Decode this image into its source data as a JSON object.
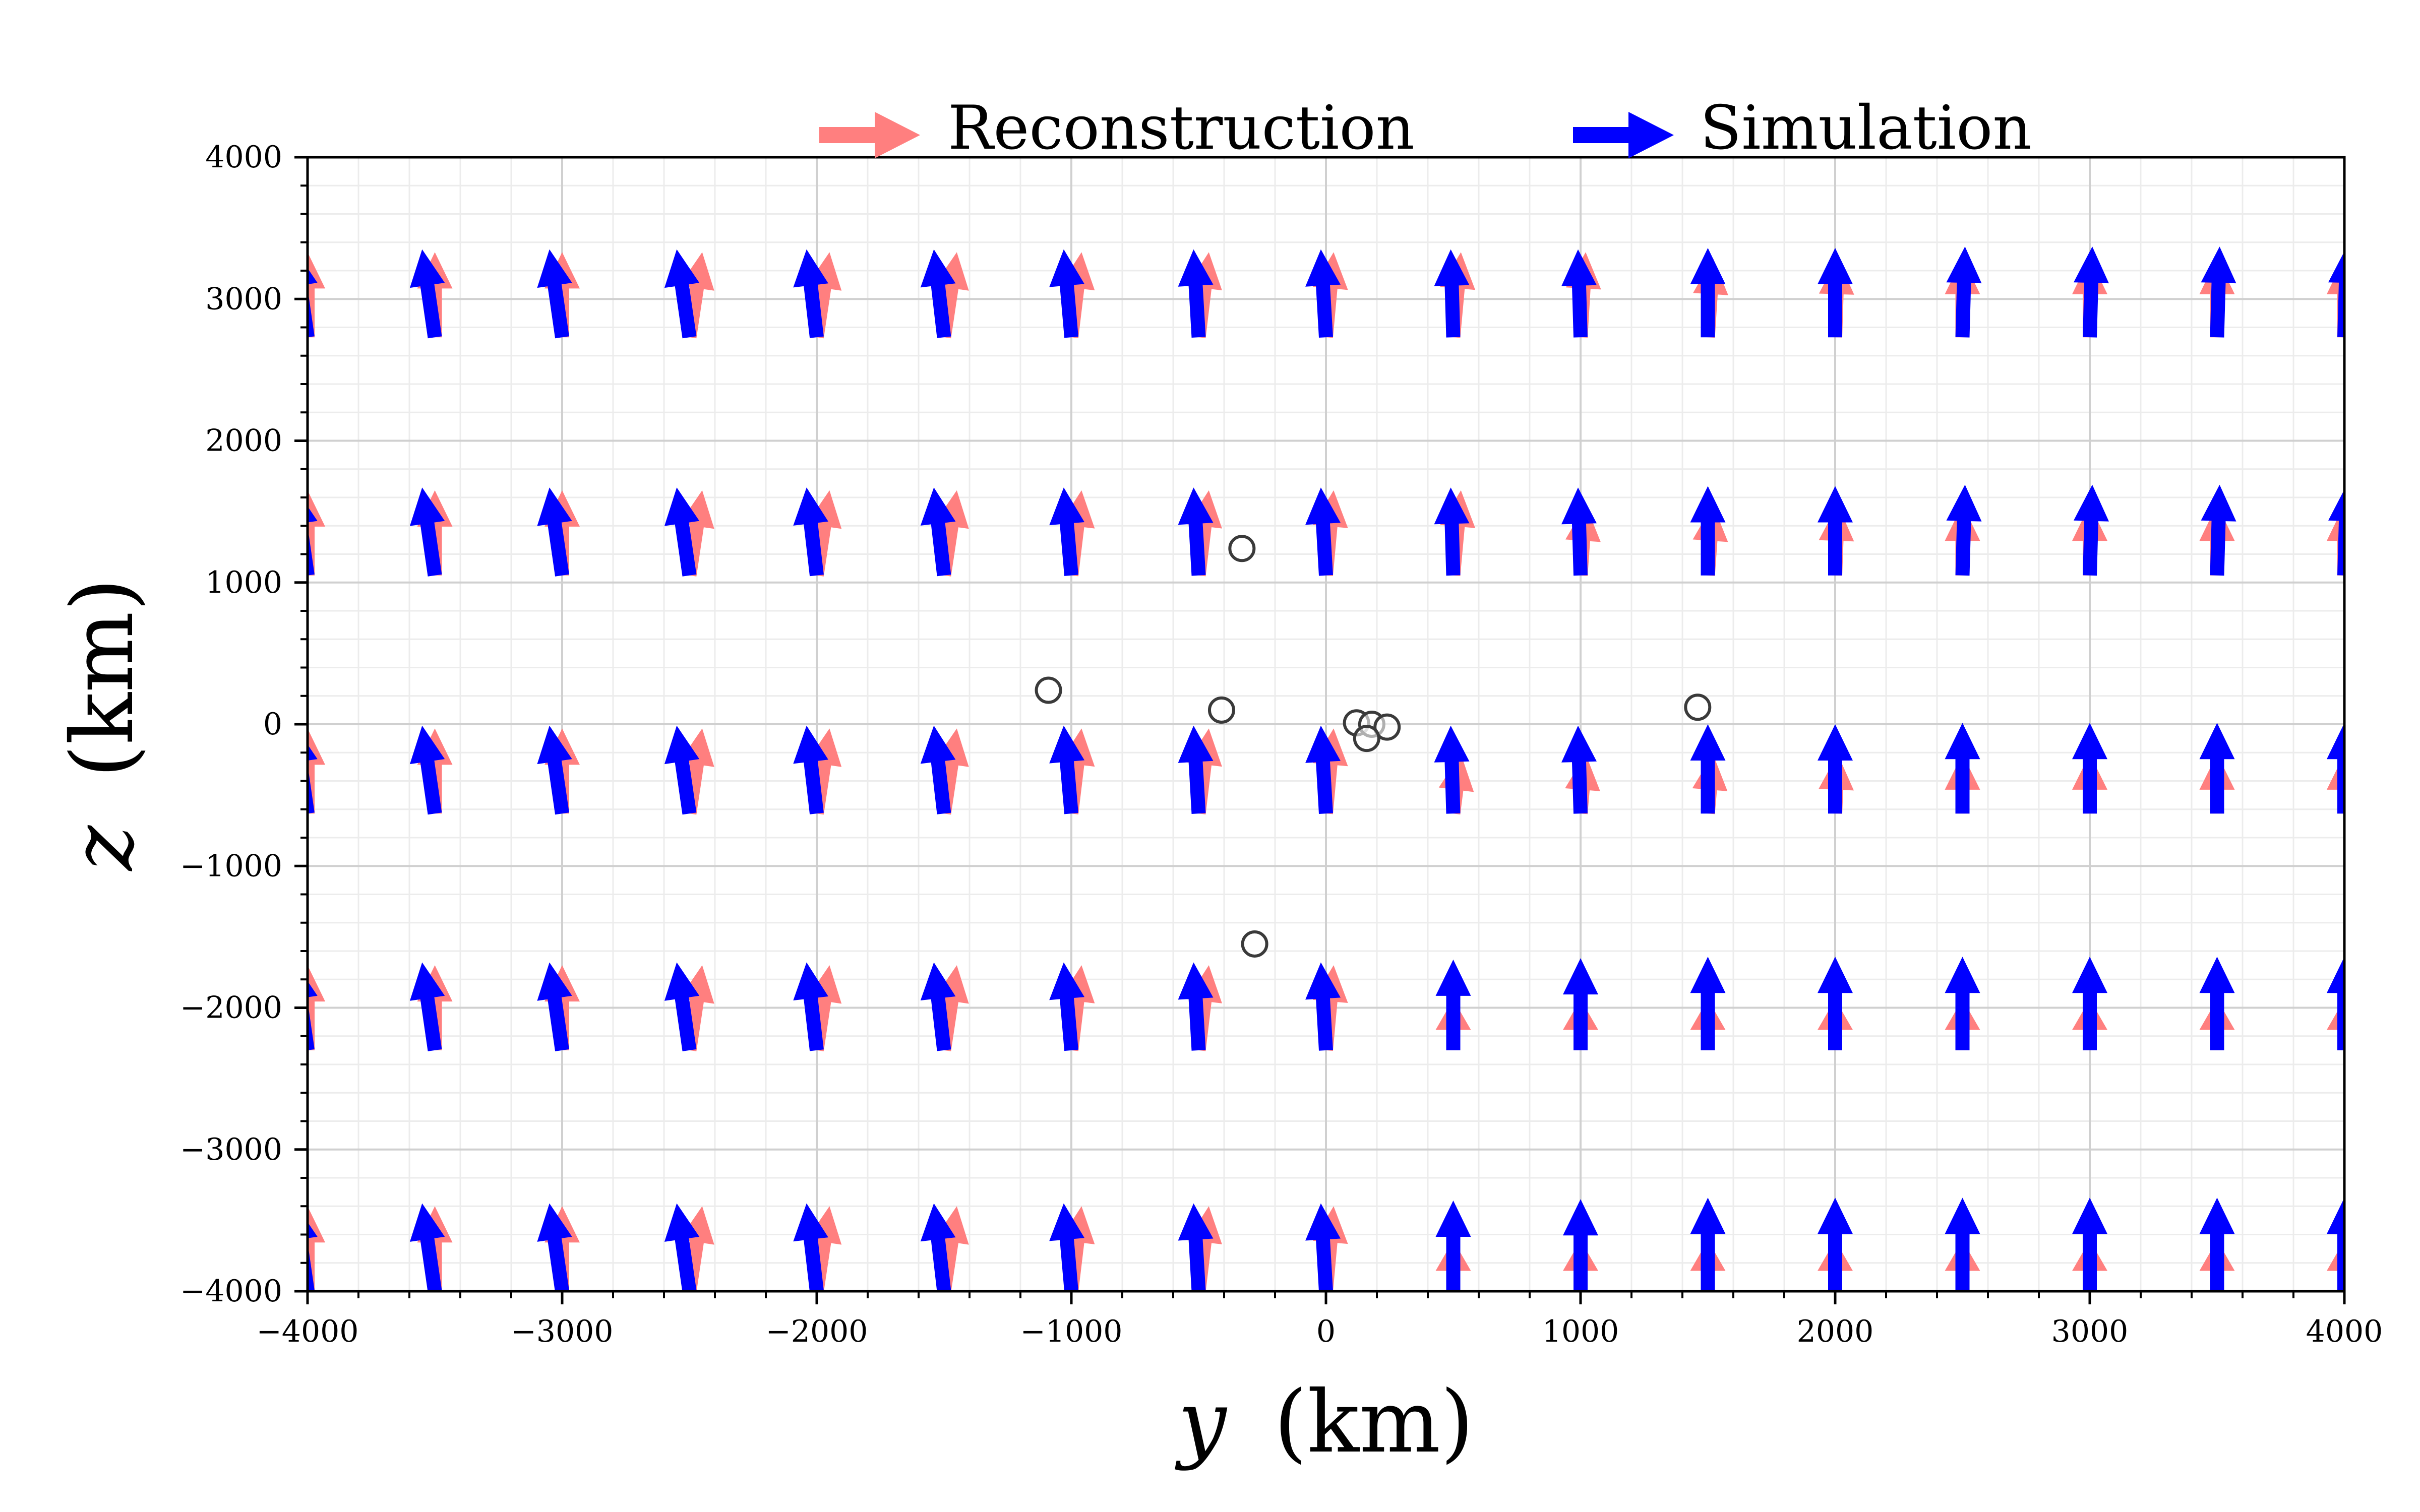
{
  "chart_data": {
    "type": "quiver",
    "xlabel_var": "y",
    "xlabel_unit": "(km)",
    "ylabel_var": "z",
    "ylabel_unit": "(km)",
    "xlim": [
      -4000,
      4000
    ],
    "ylim": [
      -4000,
      4000
    ],
    "xticks": [
      -4000,
      -3000,
      -2000,
      -1000,
      0,
      1000,
      2000,
      3000,
      4000
    ],
    "yticks": [
      -4000,
      -3000,
      -2000,
      -1000,
      0,
      1000,
      2000,
      3000,
      4000
    ],
    "xtick_labels": [
      "−4000",
      "−3000",
      "−2000",
      "−1000",
      "0",
      "1000",
      "2000",
      "3000",
      "4000"
    ],
    "ytick_labels": [
      "−4000",
      "−3000",
      "−2000",
      "−1000",
      "0",
      "1000",
      "2000",
      "3000",
      "4000"
    ],
    "grid": true,
    "minor_grid": true,
    "legend_position": "top-center",
    "legend": [
      {
        "name": "Reconstruction",
        "color": "#ff7f7f"
      },
      {
        "name": "Simulation",
        "color": "#0000ff"
      }
    ],
    "arrow_grid": {
      "x": [
        -4000,
        -3500,
        -3000,
        -2500,
        -2000,
        -1500,
        -1000,
        -500,
        0,
        500,
        1000,
        1500,
        2000,
        2500,
        3000,
        3500,
        4000
      ],
      "z_tail": [
        -4000,
        -2300,
        -630,
        1050,
        2730
      ]
    },
    "simulation_rows": [
      {
        "z_tail": 2730,
        "u": [
          -0.05,
          -0.05,
          -0.05,
          -0.05,
          -0.04,
          -0.04,
          -0.03,
          -0.02,
          -0.02,
          -0.01,
          -0.01,
          0.0,
          0.0,
          0.01,
          0.01,
          0.01,
          0.01
        ],
        "v": [
          0.62,
          0.62,
          0.62,
          0.62,
          0.62,
          0.62,
          0.62,
          0.62,
          0.62,
          0.62,
          0.62,
          0.63,
          0.63,
          0.64,
          0.64,
          0.64,
          0.64
        ]
      },
      {
        "z_tail": 1050,
        "u": [
          -0.05,
          -0.05,
          -0.05,
          -0.05,
          -0.04,
          -0.04,
          -0.03,
          -0.02,
          -0.02,
          -0.01,
          -0.01,
          0.0,
          0.0,
          0.01,
          0.01,
          0.01,
          0.01
        ],
        "v": [
          0.62,
          0.62,
          0.62,
          0.62,
          0.62,
          0.62,
          0.62,
          0.62,
          0.62,
          0.62,
          0.62,
          0.63,
          0.63,
          0.64,
          0.64,
          0.64,
          0.64
        ]
      },
      {
        "z_tail": -630,
        "u": [
          -0.05,
          -0.05,
          -0.05,
          -0.05,
          -0.04,
          -0.04,
          -0.03,
          -0.02,
          -0.02,
          -0.01,
          -0.01,
          0.0,
          0.0,
          0.0,
          0.0,
          0.0,
          0.0
        ],
        "v": [
          0.62,
          0.62,
          0.62,
          0.62,
          0.62,
          0.62,
          0.62,
          0.62,
          0.62,
          0.62,
          0.62,
          0.63,
          0.63,
          0.64,
          0.64,
          0.64,
          0.64
        ]
      },
      {
        "z_tail": -2300,
        "u": [
          -0.05,
          -0.05,
          -0.05,
          -0.05,
          -0.04,
          -0.04,
          -0.03,
          -0.02,
          -0.02,
          0.0,
          0.0,
          0.0,
          0.0,
          0.0,
          0.0,
          0.0,
          0.0
        ],
        "v": [
          0.62,
          0.62,
          0.62,
          0.62,
          0.62,
          0.62,
          0.62,
          0.62,
          0.62,
          0.64,
          0.65,
          0.66,
          0.66,
          0.66,
          0.66,
          0.66,
          0.66
        ]
      },
      {
        "z_tail": -4000,
        "u": [
          -0.05,
          -0.05,
          -0.05,
          -0.05,
          -0.04,
          -0.04,
          -0.03,
          -0.02,
          -0.02,
          0.0,
          0.0,
          0.0,
          0.0,
          0.0,
          0.0,
          0.0,
          0.0
        ],
        "v": [
          0.62,
          0.62,
          0.62,
          0.62,
          0.62,
          0.62,
          0.62,
          0.62,
          0.62,
          0.64,
          0.65,
          0.66,
          0.66,
          0.66,
          0.66,
          0.66,
          0.66
        ]
      }
    ],
    "reconstruction_rows": [
      {
        "z_tail": 2730,
        "u": [
          0.0,
          0.0,
          0.0,
          0.05,
          0.05,
          0.05,
          0.04,
          0.04,
          0.03,
          0.03,
          0.02,
          0.02,
          0.01,
          0.0,
          0.0,
          0.0,
          0.0
        ],
        "v": [
          0.6,
          0.6,
          0.6,
          0.6,
          0.6,
          0.6,
          0.6,
          0.6,
          0.6,
          0.6,
          0.6,
          0.56,
          0.56,
          0.56,
          0.56,
          0.56,
          0.56
        ]
      },
      {
        "z_tail": 1050,
        "u": [
          0.0,
          0.0,
          0.0,
          0.05,
          0.05,
          0.05,
          0.04,
          0.04,
          0.03,
          0.03,
          0.02,
          0.02,
          0.01,
          0.0,
          0.0,
          0.0,
          0.0
        ],
        "v": [
          0.6,
          0.6,
          0.6,
          0.6,
          0.6,
          0.6,
          0.6,
          0.6,
          0.6,
          0.6,
          0.5,
          0.5,
          0.5,
          0.5,
          0.5,
          0.5,
          0.5
        ]
      },
      {
        "z_tail": -630,
        "u": [
          0.0,
          0.0,
          0.0,
          0.05,
          0.05,
          0.05,
          0.04,
          0.04,
          0.03,
          0.03,
          0.02,
          0.02,
          0.01,
          0.0,
          0.0,
          0.0,
          0.0
        ],
        "v": [
          0.6,
          0.6,
          0.6,
          0.6,
          0.6,
          0.6,
          0.6,
          0.6,
          0.6,
          0.42,
          0.42,
          0.42,
          0.42,
          0.42,
          0.42,
          0.42,
          0.42
        ]
      },
      {
        "z_tail": -2300,
        "u": [
          0.0,
          0.0,
          0.0,
          0.05,
          0.05,
          0.05,
          0.04,
          0.04,
          0.03,
          0.0,
          0.0,
          0.0,
          0.0,
          0.0,
          0.0,
          0.0,
          0.0
        ],
        "v": [
          0.6,
          0.6,
          0.6,
          0.6,
          0.6,
          0.6,
          0.6,
          0.6,
          0.6,
          0.36,
          0.36,
          0.36,
          0.36,
          0.36,
          0.36,
          0.36,
          0.36
        ]
      },
      {
        "z_tail": -4000,
        "u": [
          0.0,
          0.0,
          0.0,
          0.05,
          0.05,
          0.05,
          0.04,
          0.04,
          0.03,
          0.0,
          0.0,
          0.0,
          0.0,
          0.0,
          0.0,
          0.0,
          0.0
        ],
        "v": [
          0.6,
          0.6,
          0.6,
          0.6,
          0.6,
          0.6,
          0.6,
          0.6,
          0.6,
          0.36,
          0.36,
          0.36,
          0.36,
          0.36,
          0.36,
          0.36,
          0.36
        ]
      }
    ],
    "arrow_scale_km_per_unit": 1000,
    "station_markers": [
      {
        "y": -330,
        "z": 1240
      },
      {
        "y": -1090,
        "z": 240
      },
      {
        "y": -410,
        "z": 100
      },
      {
        "y": 120,
        "z": 10
      },
      {
        "y": 180,
        "z": 0
      },
      {
        "y": 240,
        "z": -20
      },
      {
        "y": 160,
        "z": -100
      },
      {
        "y": 1460,
        "z": 120
      },
      {
        "y": -280,
        "z": -1550
      }
    ]
  }
}
